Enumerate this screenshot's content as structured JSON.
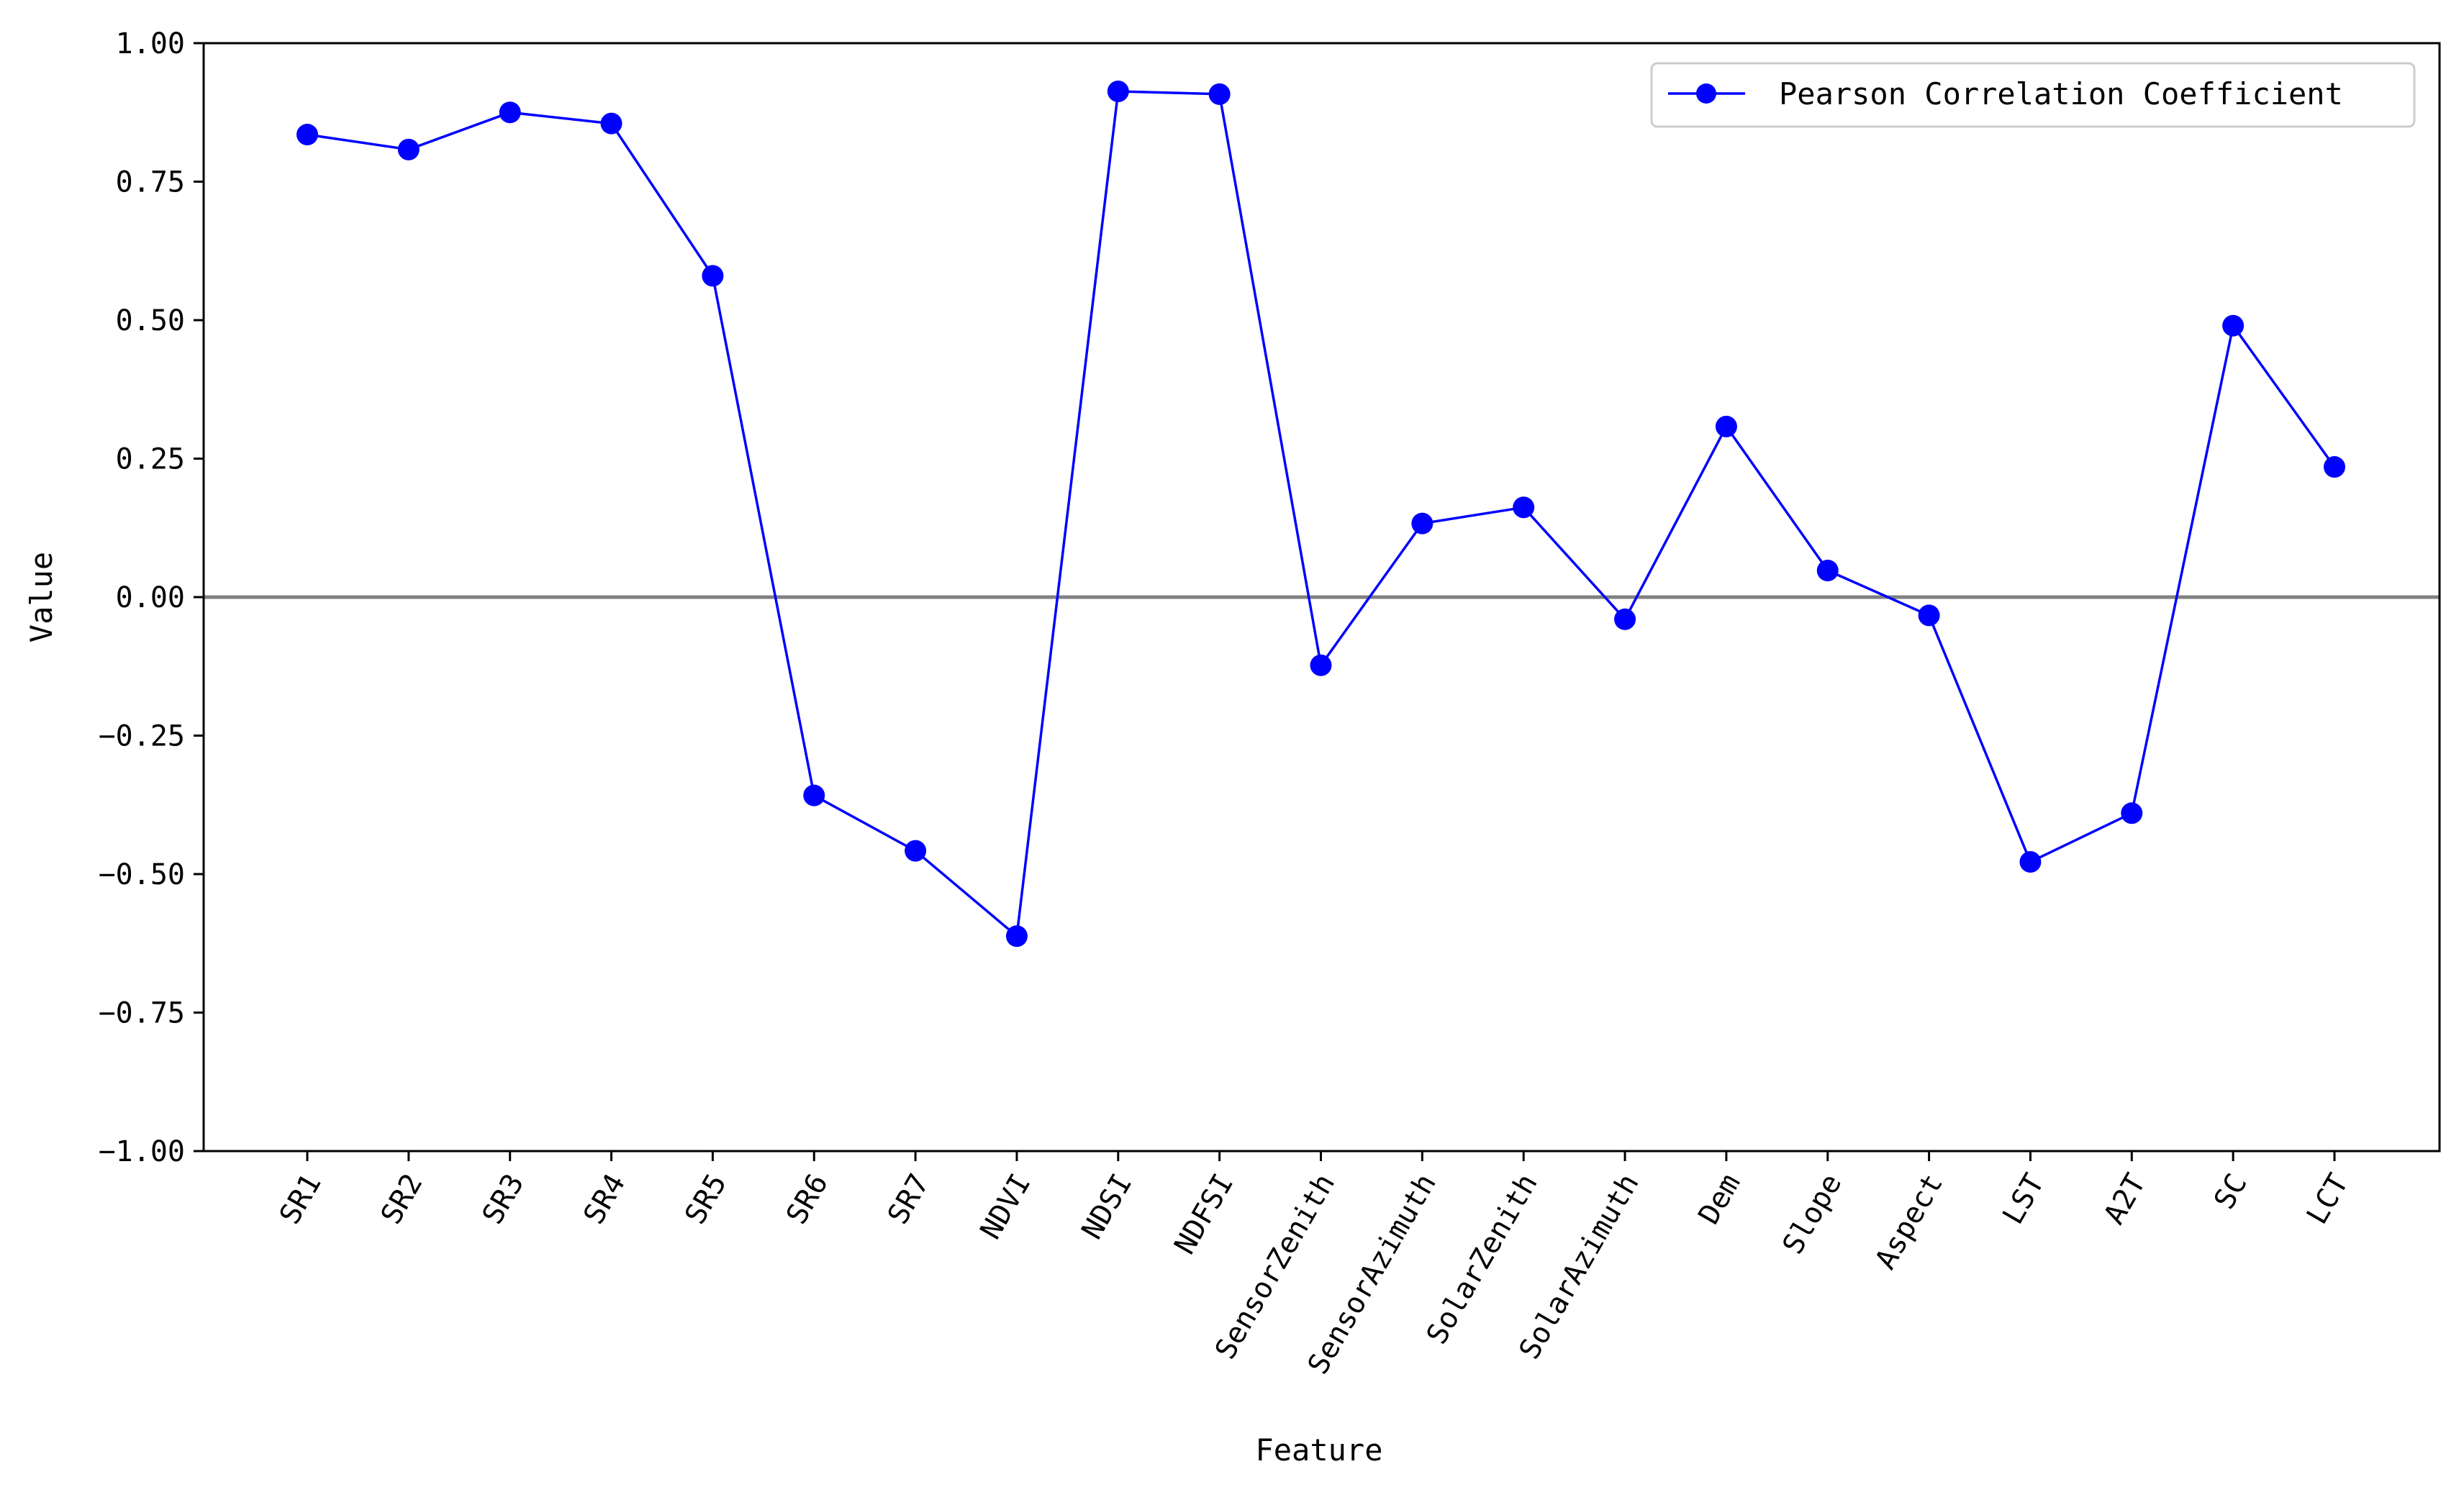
{
  "chart_data": {
    "type": "line",
    "xlabel": "Feature",
    "ylabel": "Value",
    "ylim": [
      -1.0,
      1.0
    ],
    "yticks": [
      "1.00",
      "0.75",
      "0.50",
      "0.25",
      "0.00",
      "−0.25",
      "−0.50",
      "−0.75",
      "−1.00"
    ],
    "ytick_values": [
      1.0,
      0.75,
      0.5,
      0.25,
      0.0,
      -0.25,
      -0.5,
      -0.75,
      -1.0
    ],
    "categories": [
      "SR1",
      "SR2",
      "SR3",
      "SR4",
      "SR5",
      "SR6",
      "SR7",
      "NDVI",
      "NDSI",
      "NDFSI",
      "SensorZenith",
      "SensorAzimuth",
      "SolarZenith",
      "SolarAzimuth",
      "Dem",
      "Slope",
      "Aspect",
      "LST",
      "A2T",
      "SC",
      "LCT"
    ],
    "series": [
      {
        "name": "Pearson Correlation Coefficient",
        "color": "#0000ff",
        "marker": "circle",
        "values": [
          0.835,
          0.808,
          0.875,
          0.855,
          0.58,
          -0.358,
          -0.458,
          -0.612,
          0.913,
          0.908,
          -0.123,
          0.133,
          0.162,
          -0.04,
          0.308,
          0.048,
          -0.033,
          -0.478,
          -0.39,
          0.49,
          0.235
        ]
      }
    ],
    "reference_line": {
      "y": 0.0,
      "color": "#808080"
    },
    "legend_position": "top-right",
    "grid": false
  }
}
